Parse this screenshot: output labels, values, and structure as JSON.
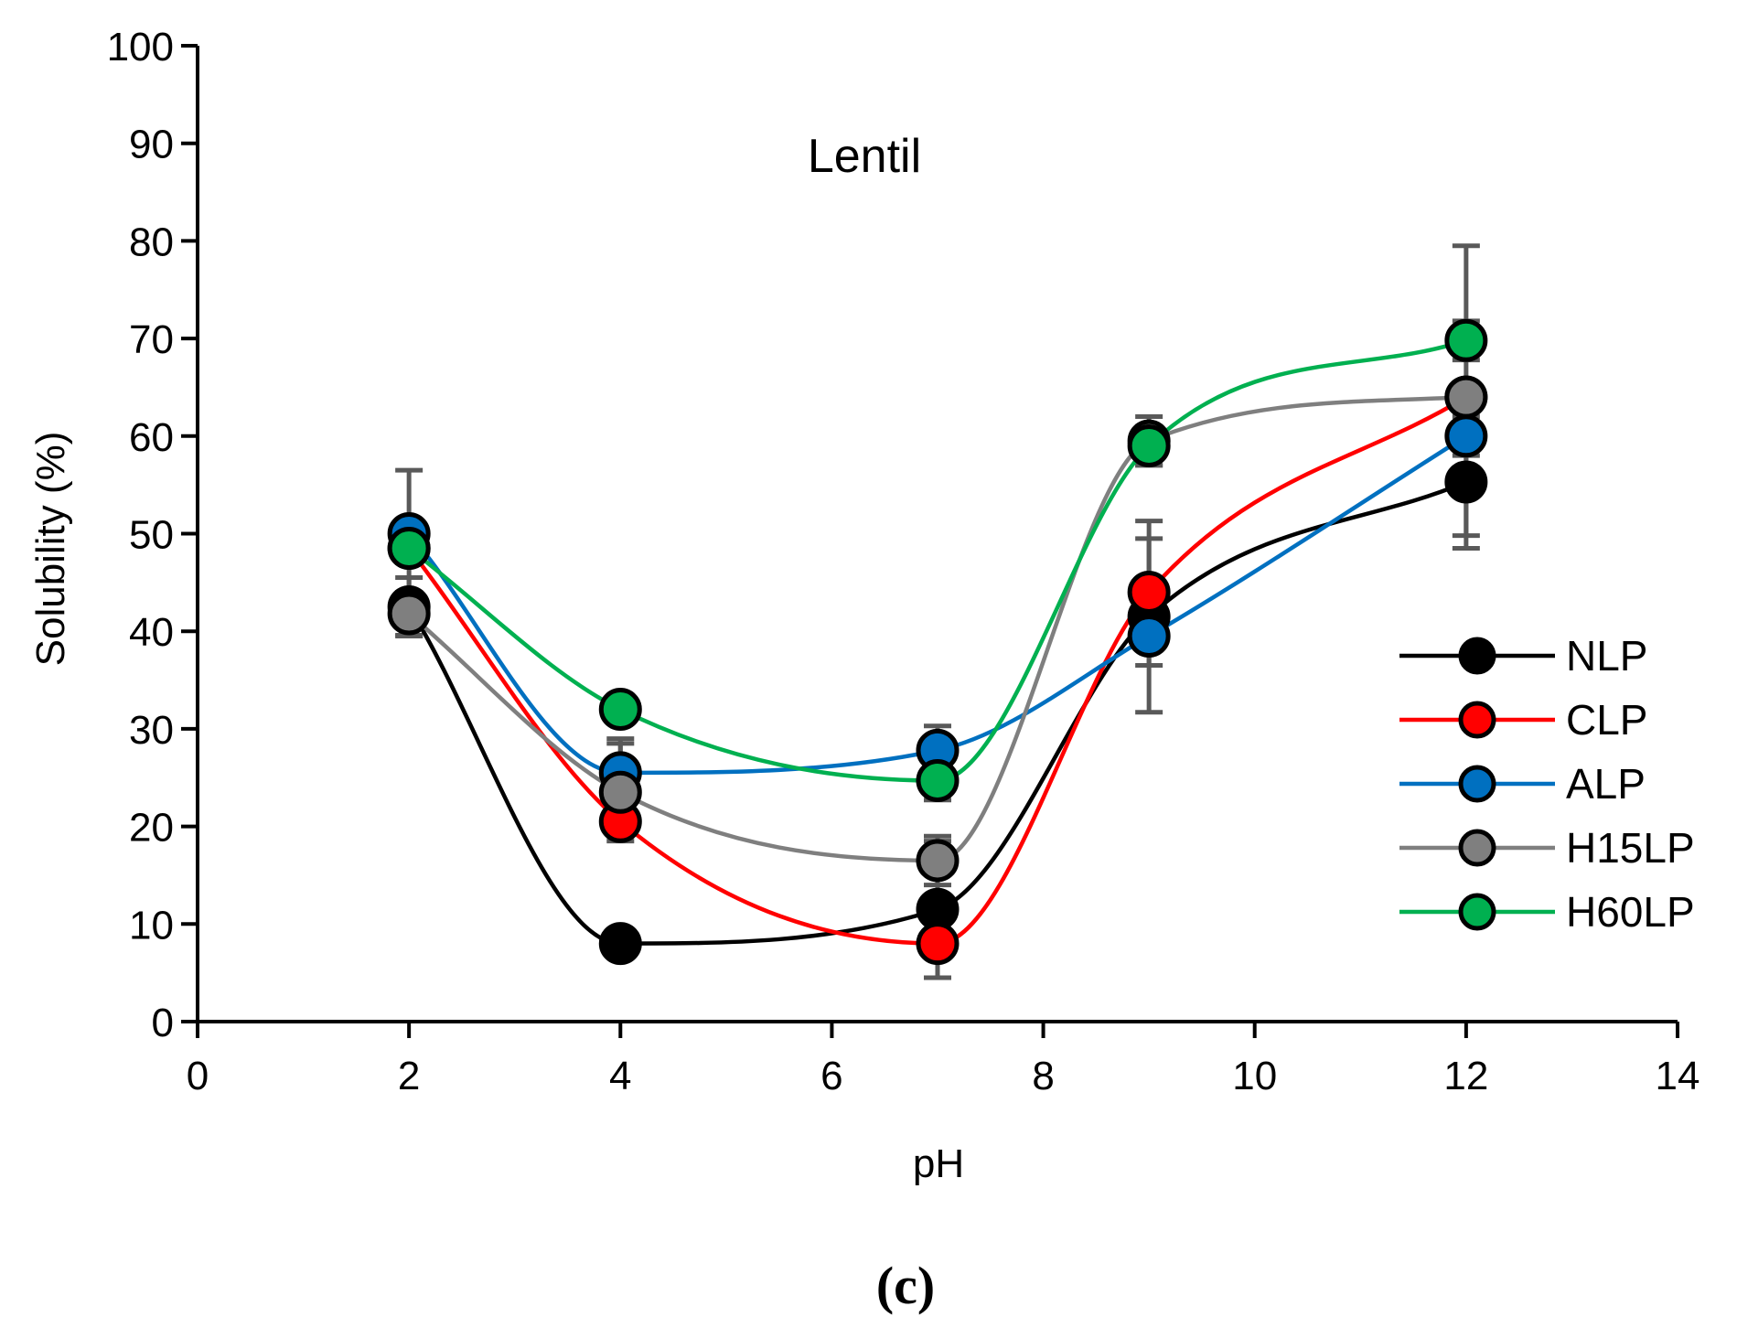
{
  "chart_data": {
    "type": "scatter",
    "title": "Lentil",
    "xlabel": "pH",
    "ylabel": "Solubility (%)",
    "xlim": [
      0,
      14
    ],
    "ylim": [
      0,
      100
    ],
    "x_ticks": [
      0,
      2,
      4,
      6,
      8,
      10,
      12,
      14
    ],
    "y_ticks": [
      0,
      10,
      20,
      30,
      40,
      50,
      60,
      70,
      80,
      90,
      100
    ],
    "grid": false,
    "legend_position": "right",
    "x": [
      2,
      4,
      7,
      9,
      12
    ],
    "series": [
      {
        "name": "NLP",
        "color": "#000000",
        "values": [
          42.5,
          8.0,
          11.5,
          41.5,
          55.3
        ],
        "errors": [
          3.0,
          0.5,
          7.0,
          9.8,
          5.5
        ]
      },
      {
        "name": "CLP",
        "color": "#ff0000",
        "values": [
          48.5,
          20.5,
          8.0,
          44.0,
          64.0
        ],
        "errors": [
          1.5,
          1.5,
          3.5,
          5.5,
          1.5
        ]
      },
      {
        "name": "ALP",
        "color": "#0070c0",
        "values": [
          50.0,
          25.5,
          27.8,
          39.5,
          60.0
        ],
        "errors": [
          6.5,
          3.5,
          2.5,
          3.0,
          2.0
        ]
      },
      {
        "name": "H15LP",
        "color": "#7f7f7f",
        "values": [
          41.8,
          23.5,
          16.5,
          59.5,
          64.0
        ],
        "errors": [
          2.2,
          5.0,
          2.5,
          2.5,
          15.5
        ]
      },
      {
        "name": "H60LP",
        "color": "#00b050",
        "values": [
          48.5,
          32.0,
          24.7,
          59.0,
          69.8
        ],
        "errors": [
          1.0,
          1.0,
          2.0,
          2.0,
          2.0
        ]
      }
    ]
  },
  "caption": "(c)"
}
